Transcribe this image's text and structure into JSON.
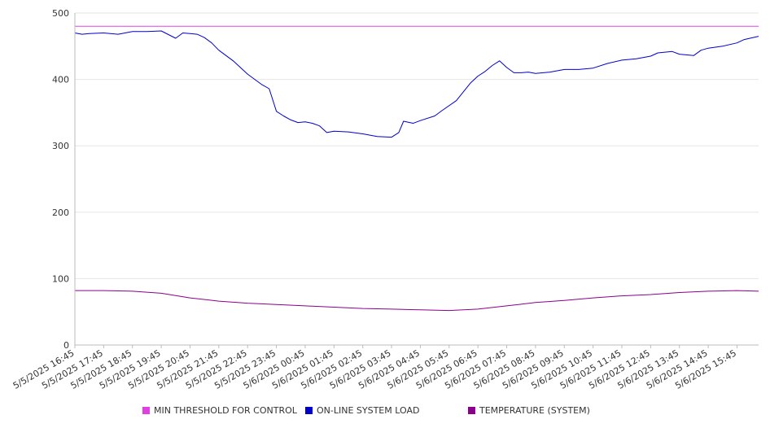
{
  "chart_data": {
    "type": "line",
    "title": "",
    "xlabel": "",
    "ylabel": "",
    "ylim": [
      0,
      500
    ],
    "yticks": [
      0,
      100,
      200,
      300,
      400,
      500
    ],
    "grid": "horizontal",
    "legend_position": "bottom",
    "x_tick_labels": [
      "5/5/2025 16:45",
      "5/5/2025 17:45",
      "5/5/2025 18:45",
      "5/5/2025 19:45",
      "5/5/2025 20:45",
      "5/5/2025 21:45",
      "5/5/2025 22:45",
      "5/5/2025 23:45",
      "5/6/2025 00:45",
      "5/6/2025 01:45",
      "5/6/2025 02:45",
      "5/6/2025 03:45",
      "5/6/2025 04:45",
      "5/6/2025 05:45",
      "5/6/2025 06:45",
      "5/6/2025 07:45",
      "5/6/2025 08:45",
      "5/6/2025 09:45",
      "5/6/2025 10:45",
      "5/6/2025 11:45",
      "5/6/2025 12:45",
      "5/6/2025 13:45",
      "5/6/2025 14:45",
      "5/6/2025 15:45"
    ],
    "x_range": [
      "5/5/2025 16:45",
      "5/6/2025 16:30"
    ],
    "series": [
      {
        "name": "MIN THRESHOLD FOR CONTROL",
        "color": "#e040e0",
        "points": [
          [
            "5/5/2025 16:45",
            480
          ],
          [
            "5/6/2025 16:30",
            480
          ]
        ]
      },
      {
        "name": "ON-LINE SYSTEM LOAD",
        "color": "#0000cc",
        "points": [
          [
            "5/5/2025 16:45",
            470
          ],
          [
            "5/5/2025 17:00",
            468
          ],
          [
            "5/5/2025 17:15",
            469
          ],
          [
            "5/5/2025 17:45",
            470
          ],
          [
            "5/5/2025 18:15",
            468
          ],
          [
            "5/5/2025 18:45",
            472
          ],
          [
            "5/5/2025 19:15",
            472
          ],
          [
            "5/5/2025 19:45",
            473
          ],
          [
            "5/5/2025 20:15",
            462
          ],
          [
            "5/5/2025 20:30",
            470
          ],
          [
            "5/5/2025 20:45",
            469
          ],
          [
            "5/5/2025 21:00",
            468
          ],
          [
            "5/5/2025 21:15",
            463
          ],
          [
            "5/5/2025 21:30",
            455
          ],
          [
            "5/5/2025 21:45",
            444
          ],
          [
            "5/5/2025 22:15",
            428
          ],
          [
            "5/5/2025 22:45",
            408
          ],
          [
            "5/5/2025 23:15",
            392
          ],
          [
            "5/5/2025 23:30",
            386
          ],
          [
            "5/5/2025 23:45",
            352
          ],
          [
            "5/6/2025 00:00",
            345
          ],
          [
            "5/6/2025 00:15",
            339
          ],
          [
            "5/6/2025 00:30",
            335
          ],
          [
            "5/6/2025 00:45",
            336
          ],
          [
            "5/6/2025 01:00",
            334
          ],
          [
            "5/6/2025 01:15",
            330
          ],
          [
            "5/6/2025 01:30",
            320
          ],
          [
            "5/6/2025 01:45",
            322
          ],
          [
            "5/6/2025 02:15",
            321
          ],
          [
            "5/6/2025 02:45",
            318
          ],
          [
            "5/6/2025 03:15",
            314
          ],
          [
            "5/6/2025 03:45",
            313
          ],
          [
            "5/6/2025 04:00",
            320
          ],
          [
            "5/6/2025 04:10",
            337
          ],
          [
            "5/6/2025 04:30",
            334
          ],
          [
            "5/6/2025 04:45",
            338
          ],
          [
            "5/6/2025 05:15",
            345
          ],
          [
            "5/6/2025 05:30",
            353
          ],
          [
            "5/6/2025 06:00",
            368
          ],
          [
            "5/6/2025 06:30",
            395
          ],
          [
            "5/6/2025 06:45",
            405
          ],
          [
            "5/6/2025 07:00",
            412
          ],
          [
            "5/6/2025 07:15",
            421
          ],
          [
            "5/6/2025 07:30",
            428
          ],
          [
            "5/6/2025 07:45",
            418
          ],
          [
            "5/6/2025 08:00",
            410
          ],
          [
            "5/6/2025 08:15",
            410
          ],
          [
            "5/6/2025 08:30",
            411
          ],
          [
            "5/6/2025 08:45",
            409
          ],
          [
            "5/6/2025 09:15",
            411
          ],
          [
            "5/6/2025 09:45",
            415
          ],
          [
            "5/6/2025 10:15",
            415
          ],
          [
            "5/6/2025 10:45",
            417
          ],
          [
            "5/6/2025 11:15",
            424
          ],
          [
            "5/6/2025 11:45",
            429
          ],
          [
            "5/6/2025 12:15",
            431
          ],
          [
            "5/6/2025 12:45",
            435
          ],
          [
            "5/6/2025 13:00",
            440
          ],
          [
            "5/6/2025 13:30",
            442
          ],
          [
            "5/6/2025 13:45",
            438
          ],
          [
            "5/6/2025 14:15",
            436
          ],
          [
            "5/6/2025 14:30",
            444
          ],
          [
            "5/6/2025 14:45",
            447
          ],
          [
            "5/6/2025 15:15",
            450
          ],
          [
            "5/6/2025 15:45",
            455
          ],
          [
            "5/6/2025 16:00",
            460
          ],
          [
            "5/6/2025 16:30",
            465
          ]
        ]
      },
      {
        "name": "TEMPERATURE (SYSTEM)",
        "color": "#8b008b",
        "points": [
          [
            "5/5/2025 16:45",
            82
          ],
          [
            "5/5/2025 17:45",
            82
          ],
          [
            "5/5/2025 18:45",
            81
          ],
          [
            "5/5/2025 19:45",
            78
          ],
          [
            "5/5/2025 20:45",
            71
          ],
          [
            "5/5/2025 21:45",
            66
          ],
          [
            "5/5/2025 22:45",
            63
          ],
          [
            "5/5/2025 23:45",
            61
          ],
          [
            "5/6/2025 00:45",
            59
          ],
          [
            "5/6/2025 01:45",
            57
          ],
          [
            "5/6/2025 02:45",
            55
          ],
          [
            "5/6/2025 03:45",
            54
          ],
          [
            "5/6/2025 04:45",
            53
          ],
          [
            "5/6/2025 05:45",
            52
          ],
          [
            "5/6/2025 06:45",
            54
          ],
          [
            "5/6/2025 07:45",
            59
          ],
          [
            "5/6/2025 08:45",
            64
          ],
          [
            "5/6/2025 09:45",
            67
          ],
          [
            "5/6/2025 10:45",
            71
          ],
          [
            "5/6/2025 11:45",
            74
          ],
          [
            "5/6/2025 12:45",
            76
          ],
          [
            "5/6/2025 13:45",
            79
          ],
          [
            "5/6/2025 14:45",
            81
          ],
          [
            "5/6/2025 15:45",
            82
          ],
          [
            "5/6/2025 16:30",
            81
          ]
        ]
      }
    ]
  },
  "colors": {
    "axis": "#bbbbbb",
    "grid": "#e6e6e6",
    "tick_text": "#333333"
  }
}
